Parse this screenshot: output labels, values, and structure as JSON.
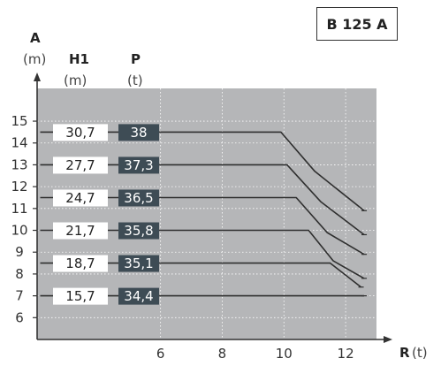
{
  "model_label": "B 125 A",
  "headers": {
    "y_axis_letter": "A",
    "y_axis_unit": "(m)",
    "h1_letter": "H1",
    "h1_unit": "(m)",
    "p_letter": "P",
    "p_unit": "(t)",
    "x_axis_letter": "R",
    "x_axis_unit": "(t)"
  },
  "colors": {
    "plot_background": "#b5b6b8",
    "grid": "#ffffff",
    "curve": "#2f2f2f",
    "h1_box": "#ffffff",
    "p_box": "#3e4c55",
    "p_text": "#ffffff"
  },
  "chart_data": {
    "type": "line",
    "title": "",
    "xlabel": "R (t)",
    "ylabel": "A (m)",
    "xlim": [
      2,
      13
    ],
    "ylim": [
      5,
      16.5
    ],
    "x_ticks": [
      6,
      8,
      10,
      12
    ],
    "y_ticks": [
      6,
      7,
      8,
      9,
      10,
      11,
      12,
      13,
      14,
      15
    ],
    "grid": true,
    "series": [
      {
        "h1": "30,7",
        "p": "38",
        "label_y": 14.5,
        "points": [
          [
            2.1,
            14.5
          ],
          [
            9.9,
            14.5
          ],
          [
            11.0,
            12.7
          ],
          [
            12.6,
            10.9
          ]
        ]
      },
      {
        "h1": "27,7",
        "p": "37,3",
        "label_y": 13.0,
        "points": [
          [
            2.1,
            13.0
          ],
          [
            10.1,
            13.0
          ],
          [
            11.2,
            11.3
          ],
          [
            12.6,
            9.8
          ]
        ]
      },
      {
        "h1": "24,7",
        "p": "36,5",
        "label_y": 11.5,
        "points": [
          [
            2.1,
            11.5
          ],
          [
            10.4,
            11.5
          ],
          [
            11.4,
            9.9
          ],
          [
            12.6,
            8.9
          ]
        ]
      },
      {
        "h1": "21,7",
        "p": "35,8",
        "label_y": 10.0,
        "points": [
          [
            2.1,
            10.0
          ],
          [
            10.8,
            10.0
          ],
          [
            11.6,
            8.6
          ],
          [
            12.6,
            7.8
          ]
        ]
      },
      {
        "h1": "18,7",
        "p": "35,1",
        "label_y": 8.5,
        "points": [
          [
            2.1,
            8.5
          ],
          [
            11.5,
            8.5
          ],
          [
            12.5,
            7.4
          ]
        ]
      },
      {
        "h1": "15,7",
        "p": "34,4",
        "label_y": 7.0,
        "points": [
          [
            2.1,
            7.0
          ],
          [
            12.6,
            7.0
          ]
        ]
      }
    ]
  }
}
